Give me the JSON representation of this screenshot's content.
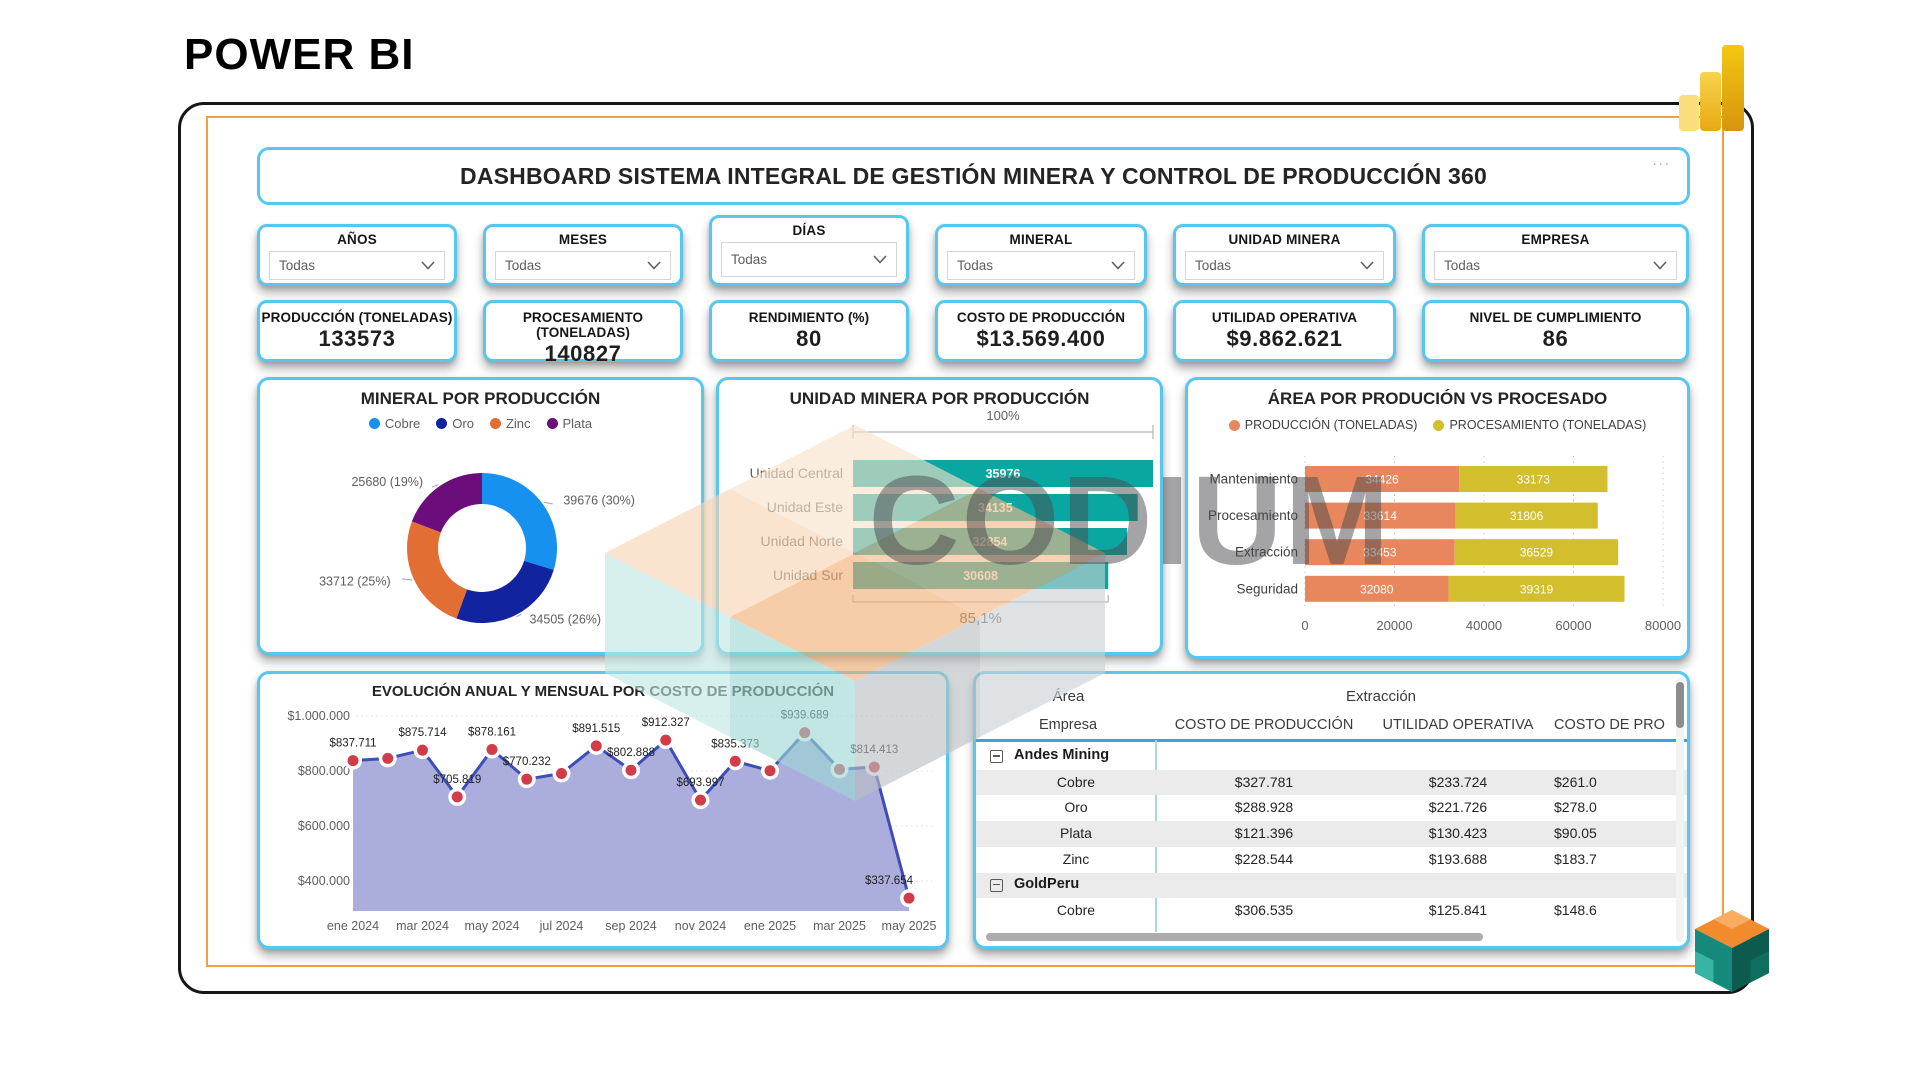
{
  "page": {
    "brand": "POWER BI"
  },
  "header": {
    "title": "DASHBOARD SISTEMA INTEGRAL DE GESTIÓN MINERA Y CONTROL DE PRODUCCIÓN 360",
    "more_options": "..."
  },
  "filters": {
    "items": [
      {
        "label": "AÑOS",
        "value": "Todas"
      },
      {
        "label": "MESES",
        "value": "Todas"
      },
      {
        "label": "DÍAS",
        "value": "Todas"
      },
      {
        "label": "MINERAL",
        "value": "Todas"
      },
      {
        "label": "UNIDAD MINERA",
        "value": "Todas"
      },
      {
        "label": "EMPRESA",
        "value": "Todas"
      }
    ]
  },
  "kpis": {
    "items": [
      {
        "label": "PRODUCCIÓN (TONELADAS)",
        "value": "133573"
      },
      {
        "label": "PROCESAMIENTO (TONELADAS)",
        "value": "140827"
      },
      {
        "label": "RENDIMIENTO (%)",
        "value": "80"
      },
      {
        "label": "COSTO DE PRODUCCIÓN",
        "value": "$13.569.400"
      },
      {
        "label": "UTILIDAD OPERATIVA",
        "value": "$9.862.621"
      },
      {
        "label": "NIVEL DE CUMPLIMIENTO",
        "value": "86"
      }
    ]
  },
  "watermark": {
    "text": "CODIUM"
  },
  "chart_data": [
    {
      "id": "mineral_donut",
      "type": "pie",
      "title": "MINERAL POR PRODUCCIÓN",
      "legend_position": "top",
      "categories": [
        "Cobre",
        "Oro",
        "Zinc",
        "Plata"
      ],
      "values": [
        39676,
        34505,
        33712,
        25680
      ],
      "labels": [
        "39676 (30%)",
        "34505 (26%)",
        "33712 (25%)",
        "25680 (19%)"
      ],
      "colors": [
        "#1791F0",
        "#11239E",
        "#E26E33",
        "#6B0D7B"
      ],
      "donut": true
    },
    {
      "id": "unidad_bars",
      "type": "bar",
      "orientation": "horizontal",
      "title": "UNIDAD MINERA POR PRODUCCIÓN",
      "categories": [
        "Unidad Central",
        "Unidad Este",
        "Unidad Norte",
        "Unidad Sur"
      ],
      "values": [
        35976,
        34135,
        32854,
        30608
      ],
      "bar_color": "#0AA6A2",
      "top_annotation": "100%",
      "bottom_annotation": "85,1%"
    },
    {
      "id": "area_stacked",
      "type": "bar",
      "stacked": true,
      "orientation": "horizontal",
      "title": "ÁREA POR PRODUCIÓN VS PROCESADO",
      "categories": [
        "Mantenimiento",
        "Procesamiento",
        "Extracción",
        "Seguridad"
      ],
      "series": [
        {
          "name": "PRODUCCIÓN (TONELADAS)",
          "color": "#E8875D",
          "values": [
            34426,
            33614,
            33453,
            32080
          ]
        },
        {
          "name": "PROCESAMIENTO (TONELADAS)",
          "color": "#D3BF2E",
          "values": [
            33173,
            31806,
            36529,
            39319
          ]
        }
      ],
      "xlim": [
        0,
        80000
      ],
      "x_ticks": [
        0,
        20000,
        40000,
        60000,
        80000
      ],
      "grid": true,
      "legend_position": "top"
    },
    {
      "id": "costo_line",
      "type": "area",
      "title": "EVOLUCIÓN ANUAL Y MENSUAL POR COSTO DE PRODUCCIÓN",
      "x": [
        "ene 2024",
        "feb 2024",
        "mar 2024",
        "abr 2024",
        "may 2024",
        "jun 2024",
        "jul 2024",
        "ago 2024",
        "sep 2024",
        "oct 2024",
        "nov 2024",
        "dic 2024",
        "ene 2025",
        "feb 2025",
        "mar 2025",
        "abr 2025",
        "may 2025"
      ],
      "x_tick_labels": [
        "ene 2024",
        "mar 2024",
        "may 2024",
        "jul 2024",
        "sep 2024",
        "nov 2024",
        "ene 2025",
        "mar 2025",
        "may 2025"
      ],
      "values": [
        837711,
        846000,
        875714,
        705819,
        878161,
        770232,
        791000,
        891515,
        802888,
        912327,
        693997,
        835373,
        801000,
        939689,
        806000,
        814413,
        337654
      ],
      "point_labels": [
        "$837.711",
        "",
        "$875.714",
        "$705.819",
        "$878.161",
        "$770.232",
        "",
        "$891.515",
        "$802.888",
        "$912.327",
        "$693.997",
        "$835.373",
        "",
        "$939.689",
        "",
        "$814.413",
        "$337.654"
      ],
      "y_ticks": [
        "$1.000.000",
        "$800.000",
        "$600.000",
        "$400.000"
      ],
      "y_tick_values": [
        1000000,
        800000,
        600000,
        400000
      ],
      "ylim": [
        300000,
        1050000
      ],
      "grid": true,
      "line_color": "#3D4EB8",
      "area_color": "#A6A9DA",
      "marker_color": "#D03C47"
    },
    {
      "id": "detail_table",
      "type": "table",
      "header_row1": {
        "col1": "Área",
        "col2": "Extracción"
      },
      "columns": [
        "Empresa",
        "COSTO DE PRODUCCIÓN",
        "UTILIDAD OPERATIVA",
        "COSTO DE PRO"
      ],
      "rows": [
        {
          "kind": "group",
          "label": "Andes Mining"
        },
        {
          "kind": "data",
          "label": "Cobre",
          "values": [
            "$327.781",
            "$233.724",
            "$261.0"
          ]
        },
        {
          "kind": "data",
          "label": "Oro",
          "values": [
            "$288.928",
            "$221.726",
            "$278.0"
          ]
        },
        {
          "kind": "data",
          "label": "Plata",
          "values": [
            "$121.396",
            "$130.423",
            "$90.05"
          ]
        },
        {
          "kind": "data",
          "label": "Zinc",
          "values": [
            "$228.544",
            "$193.688",
            "$183.7"
          ]
        },
        {
          "kind": "group",
          "label": "GoldPeru"
        },
        {
          "kind": "data",
          "label": "Cobre",
          "values": [
            "$306.535",
            "$125.841",
            "$148.6"
          ]
        }
      ]
    }
  ]
}
